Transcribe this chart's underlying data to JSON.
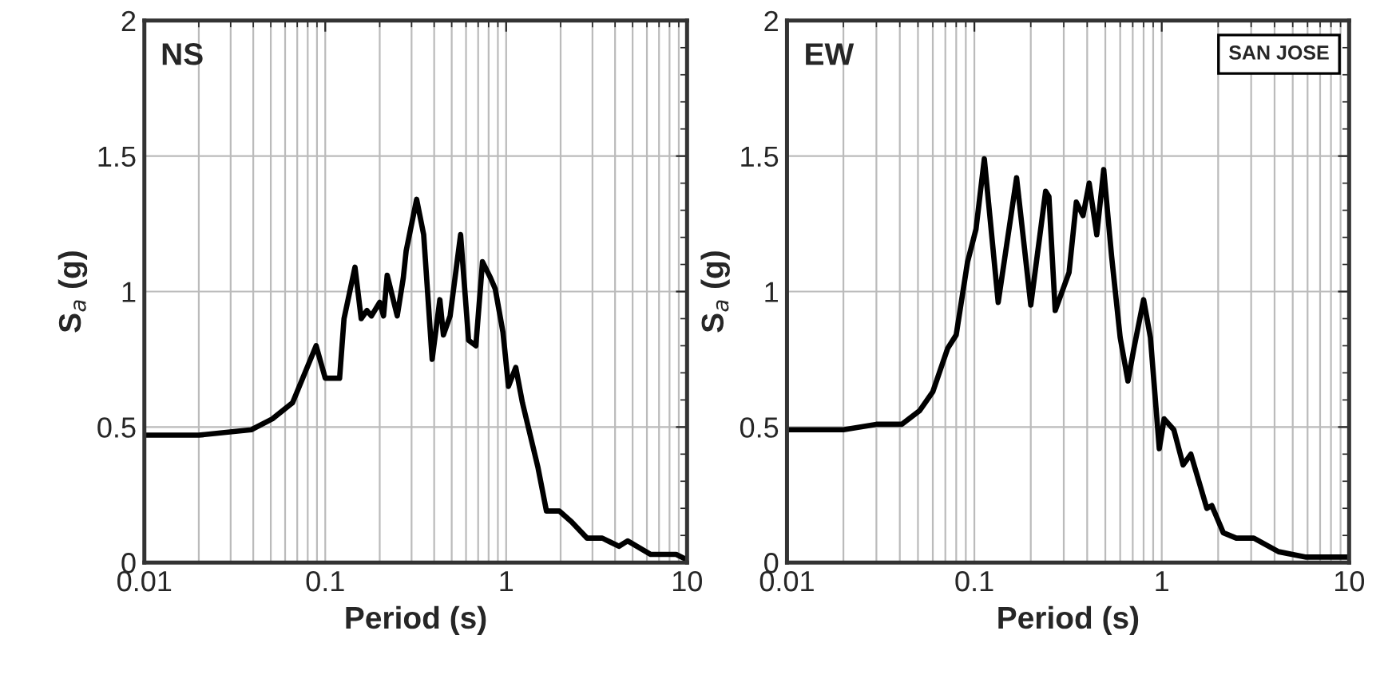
{
  "chart_data": [
    {
      "type": "line",
      "title": "NS",
      "xlabel": "Period (s)",
      "ylabel": "S$_{a}$ (g)",
      "log": "x",
      "grid": true,
      "xlim": [
        0.01,
        10
      ],
      "ylim": [
        0,
        2
      ],
      "xticks": [
        0.01,
        0.1,
        1,
        10
      ],
      "yticks": [
        0,
        0.5,
        1,
        1.5,
        2
      ],
      "series": [
        {
          "color": "#000000",
          "x": [
            0.01,
            0.02,
            0.039,
            0.051,
            0.066,
            0.089,
            0.1,
            0.12,
            0.127,
            0.146,
            0.158,
            0.17,
            0.18,
            0.2,
            0.21,
            0.22,
            0.25,
            0.27,
            0.28,
            0.32,
            0.35,
            0.39,
            0.43,
            0.45,
            0.49,
            0.56,
            0.62,
            0.68,
            0.74,
            0.82,
            0.87,
            0.96,
            1.03,
            1.13,
            1.23,
            1.5,
            1.67,
            1.97,
            2.3,
            2.8,
            3.4,
            4.2,
            4.7,
            6.3,
            8.7,
            10
          ],
          "values": [
            0.47,
            0.47,
            0.49,
            0.53,
            0.59,
            0.8,
            0.68,
            0.68,
            0.9,
            1.09,
            0.9,
            0.93,
            0.91,
            0.96,
            0.91,
            1.06,
            0.91,
            1.05,
            1.15,
            1.34,
            1.21,
            0.75,
            0.97,
            0.84,
            0.91,
            1.21,
            0.82,
            0.8,
            1.11,
            1.05,
            1.01,
            0.85,
            0.65,
            0.72,
            0.59,
            0.35,
            0.19,
            0.19,
            0.15,
            0.09,
            0.09,
            0.06,
            0.08,
            0.03,
            0.03,
            0.01
          ]
        }
      ]
    },
    {
      "type": "line",
      "title": "EW",
      "xlabel": "Period (s)",
      "ylabel": "S$_{a}$ (g)",
      "log": "x",
      "grid": true,
      "xlim": [
        0.01,
        10
      ],
      "ylim": [
        0,
        2
      ],
      "xticks": [
        0.01,
        0.1,
        1,
        10
      ],
      "yticks": [
        0,
        0.5,
        1,
        1.5,
        2
      ],
      "annotations": [
        "SAN JOSE"
      ],
      "series": [
        {
          "color": "#000000",
          "x": [
            0.01,
            0.02,
            0.03,
            0.041,
            0.051,
            0.06,
            0.072,
            0.08,
            0.092,
            0.102,
            0.113,
            0.134,
            0.168,
            0.2,
            0.24,
            0.25,
            0.27,
            0.32,
            0.35,
            0.38,
            0.41,
            0.45,
            0.49,
            0.54,
            0.6,
            0.66,
            0.71,
            0.8,
            0.87,
            0.97,
            1.03,
            1.16,
            1.3,
            1.43,
            1.74,
            1.85,
            2.13,
            2.5,
            3.1,
            4.2,
            5.9,
            10
          ],
          "values": [
            0.49,
            0.49,
            0.51,
            0.51,
            0.56,
            0.63,
            0.79,
            0.84,
            1.11,
            1.23,
            1.49,
            0.96,
            1.42,
            0.95,
            1.37,
            1.35,
            0.93,
            1.07,
            1.33,
            1.28,
            1.4,
            1.21,
            1.45,
            1.13,
            0.83,
            0.67,
            0.79,
            0.97,
            0.83,
            0.42,
            0.53,
            0.49,
            0.36,
            0.4,
            0.2,
            0.21,
            0.11,
            0.09,
            0.09,
            0.04,
            0.02,
            0.02
          ]
        }
      ]
    }
  ]
}
